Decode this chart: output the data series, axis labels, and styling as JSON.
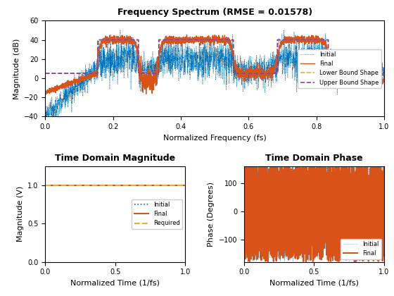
{
  "title1": "Frequency Spectrum (RMSE = 0.01578)",
  "xlabel1": "Normalized Frequency (fs)",
  "ylabel1": "Magnitude (dB)",
  "title2": "Time Domain Magnitude",
  "xlabel2": "Normalized Time (1/fs)",
  "ylabel2": "Magnitude (V)",
  "title3": "Time Domain Phase",
  "xlabel3": "Normalized Time (1/fs)",
  "ylabel3": "Phase (Degrees)",
  "ylim1": [
    -40,
    60
  ],
  "xlim1": [
    0,
    1
  ],
  "ylim2": [
    0,
    1.25
  ],
  "xlim2": [
    0,
    1
  ],
  "ylim3": [
    -180,
    160
  ],
  "xlim3": [
    0,
    1
  ],
  "color_initial": "#0072BD",
  "color_final": "#D95319",
  "color_lower": "#EDB120",
  "color_upper": "#7E2F8E",
  "n_points_freq": 3000,
  "n_points_time": 2000,
  "legend1_labels": [
    "Initial",
    "Final",
    "Lower Bound Shape",
    "Upper Bound Shape"
  ],
  "legend2_labels": [
    "Initial",
    "Final",
    "Required"
  ],
  "legend3_labels": [
    "Initial",
    "Final"
  ],
  "passband1": [
    0.155,
    0.275
  ],
  "passband2": [
    0.335,
    0.555
  ],
  "passband3": [
    0.685,
    0.835
  ],
  "passband_level": 40.0,
  "stopband_level": 5.0,
  "bound_passband_level": 40.0,
  "bound_stopband_level": 5.0
}
